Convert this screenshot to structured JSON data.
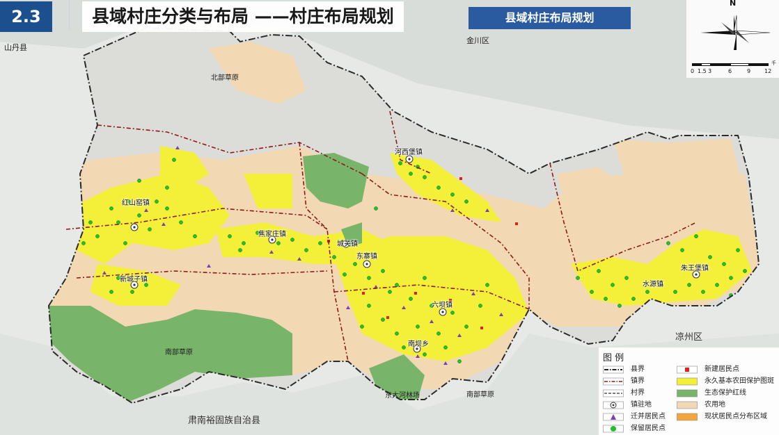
{
  "header": {
    "section_number": "2.3",
    "title": "县域村庄分类与布局 ——村庄布局规划",
    "subtitle": "县域村庄布局规划"
  },
  "map": {
    "region_labels": {
      "shandan": "山丹县",
      "jinchuan": "金川区",
      "liangzhou": "凉州区",
      "sunan": "肃南裕固族自治县",
      "north_grassland": "北部草原",
      "south_grassland": "南部草原",
      "south_grassland2": "南部草原",
      "dadaohe_forest": "东大河林场"
    },
    "towns": [
      {
        "name": "河西堡镇"
      },
      {
        "name": "红山窑镇"
      },
      {
        "name": "焦家庄镇"
      },
      {
        "name": "城关镇"
      },
      {
        "name": "东寨镇"
      },
      {
        "name": "新城子镇"
      },
      {
        "name": "六坝镇"
      },
      {
        "name": "南坝乡"
      },
      {
        "name": "水源镇"
      },
      {
        "name": "朱王堡镇"
      }
    ]
  },
  "compass": {
    "north": "N",
    "scale_ticks": [
      "0",
      "1.5",
      "3",
      "6",
      "9",
      "12"
    ],
    "scale_unit": "千"
  },
  "legend": {
    "title": "图 例",
    "items_left": [
      {
        "label": "县界",
        "symbol": "county-boundary"
      },
      {
        "label": "镇界",
        "symbol": "town-boundary"
      },
      {
        "label": "村界",
        "symbol": "village-boundary"
      },
      {
        "label": "镇驻地",
        "symbol": "town-seat"
      },
      {
        "label": "迁并居民点",
        "symbol": "relocated-settlement"
      },
      {
        "label": "保留居民点",
        "symbol": "retained-settlement"
      }
    ],
    "items_right": [
      {
        "label": "新建居民点",
        "symbol": "new-settlement",
        "color": "#e0201c"
      },
      {
        "label": "永久基本农田保护图斑",
        "symbol": "farmland-protection",
        "color": "#f4f03a"
      },
      {
        "label": "生态保护红线",
        "symbol": "eco-redline",
        "color": "#78b46a"
      },
      {
        "label": "农用地",
        "symbol": "agricultural-land",
        "color": "#f2d9b4"
      },
      {
        "label": "现状居民点分布区域",
        "symbol": "existing-settlement-area",
        "color": "#f4a53c"
      }
    ]
  },
  "colors": {
    "badge": "#1c4f8e",
    "subtitle_bg": "#2a5aa0",
    "agricultural": "#f2d9b4",
    "farmland": "#f4f03a",
    "eco": "#78b46a",
    "relocated": "#7a3fb0",
    "retained": "#22c12a",
    "new": "#e0201c"
  }
}
